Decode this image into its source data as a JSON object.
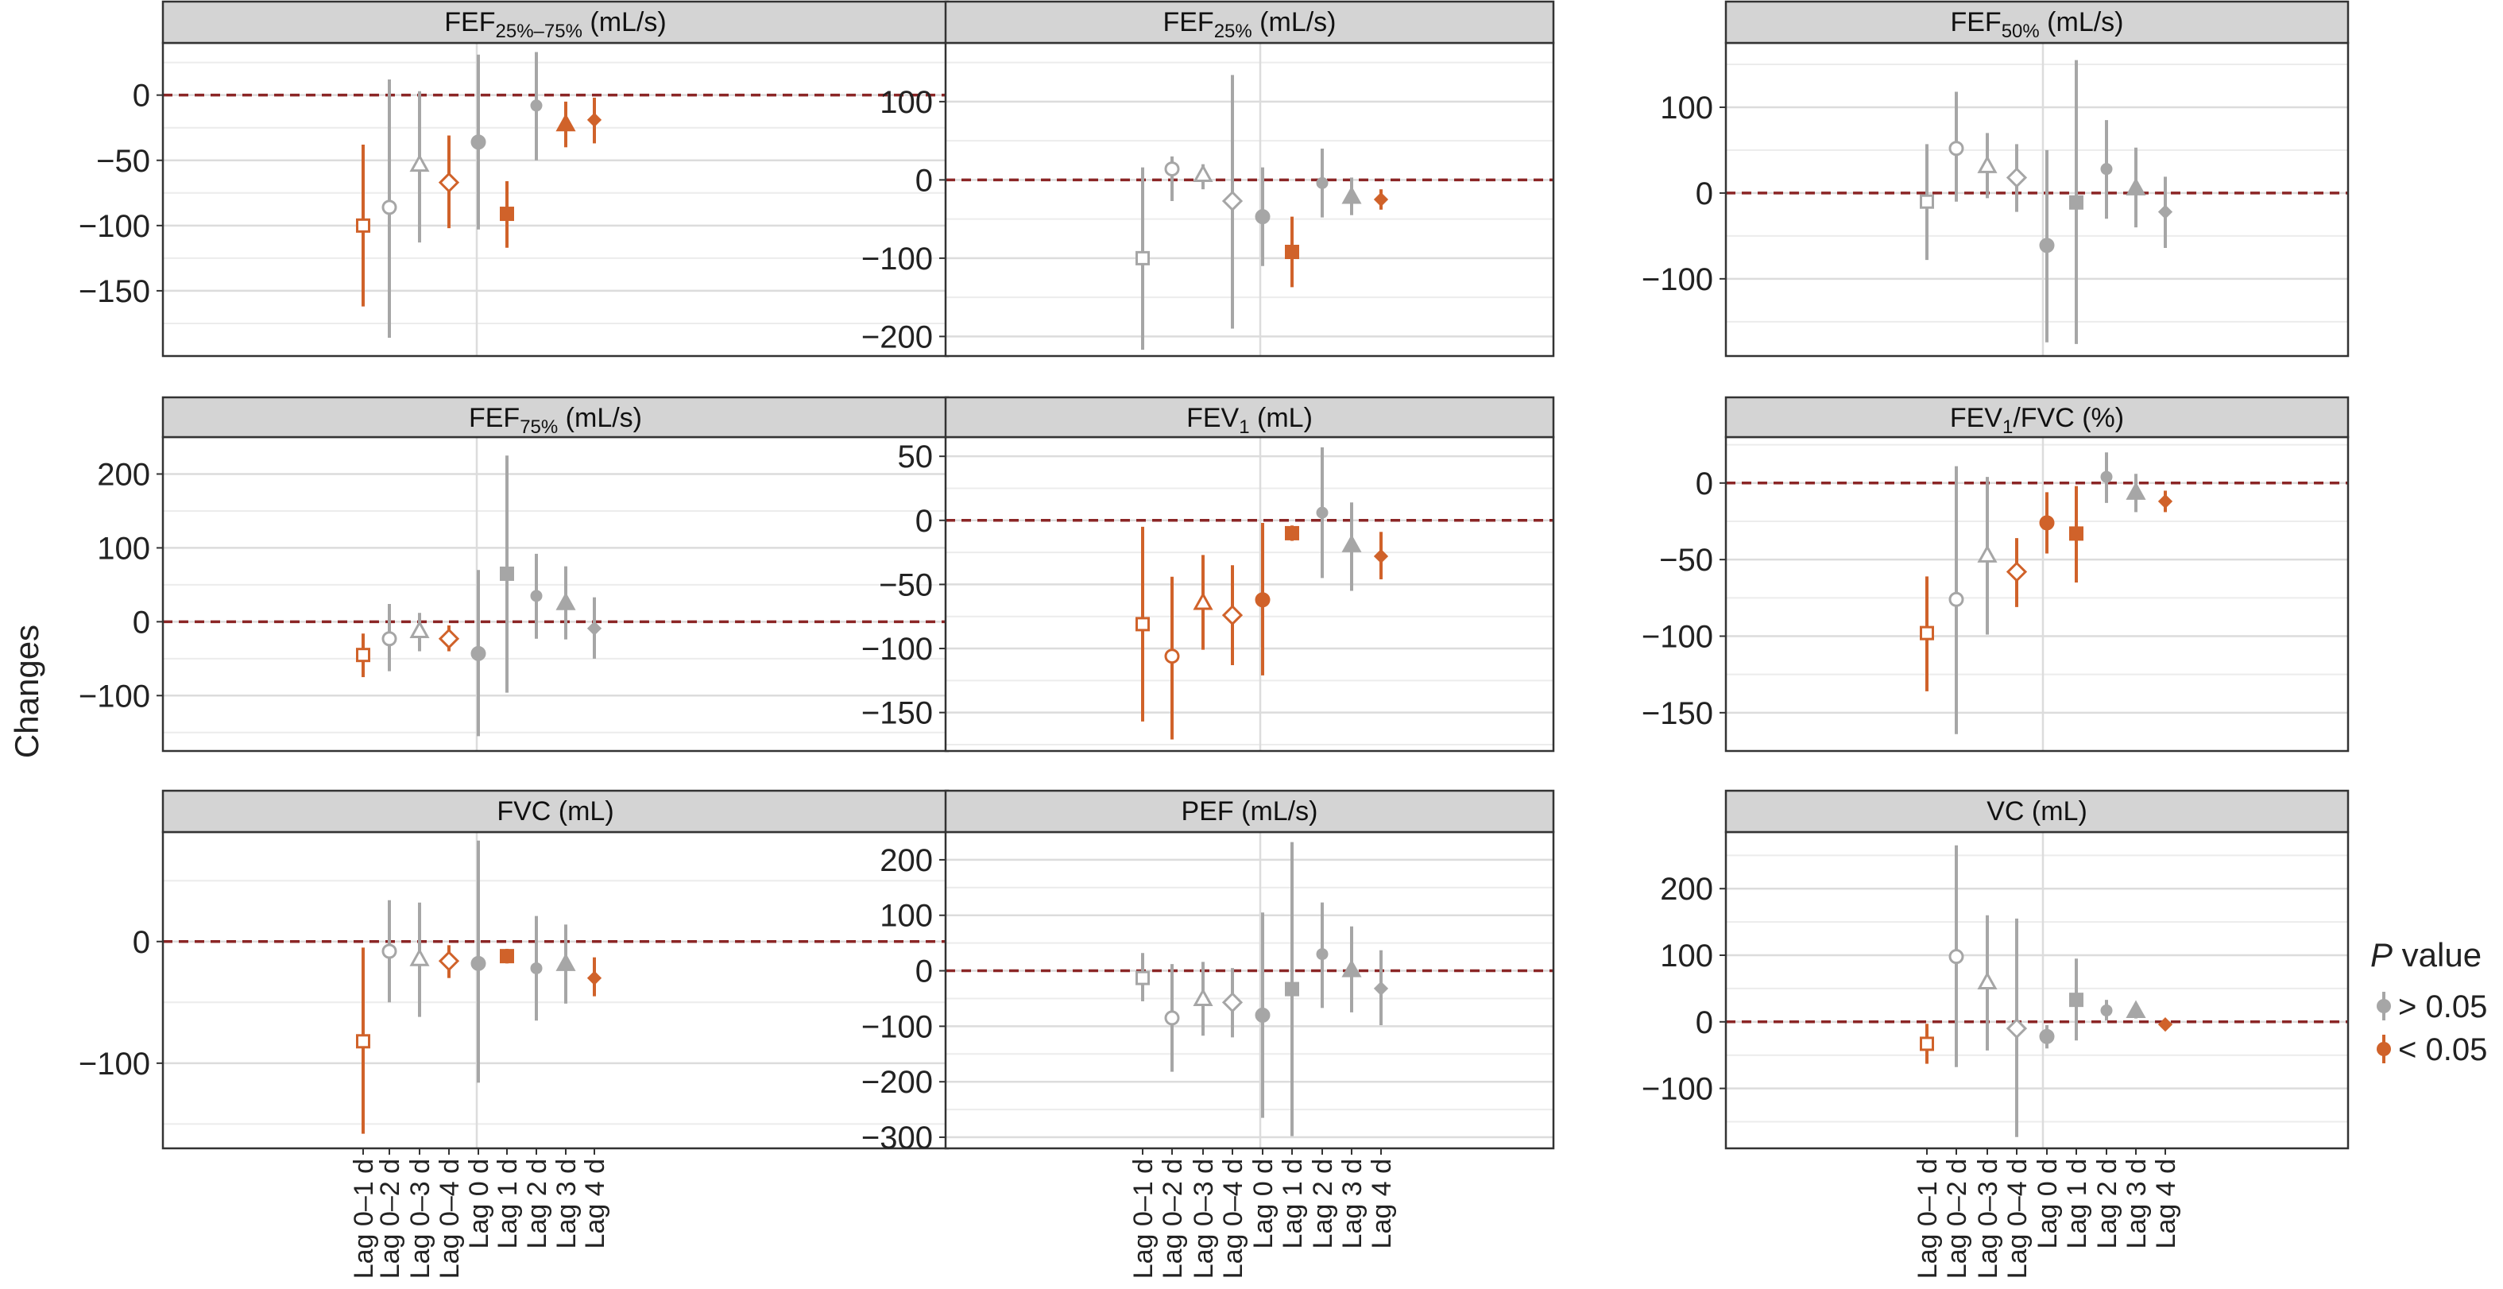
{
  "ylabel": "Changes",
  "legend": {
    "title_italic": "P",
    "title_rest": " value",
    "items": [
      {
        "label": "> 0.05",
        "color": "#a6a6a6"
      },
      {
        "label": "< 0.05",
        "color": "#d0622a"
      }
    ]
  },
  "colors": {
    "ns": "#a6a6a6",
    "sig": "#d0622a",
    "reference": "#8b2626",
    "strip": "#d4d4d4",
    "grid_major": "#dcdcdc",
    "grid_minor": "#ececec"
  },
  "categories": [
    "Lag 0–1 d",
    "Lag 0–2 d",
    "Lag 0–3 d",
    "Lag 0–4 d",
    "Lag 0 d",
    "Lag 1 d",
    "Lag 2 d",
    "Lag 3 d",
    "Lag 4 d"
  ],
  "shapes": [
    "open-square",
    "open-circle",
    "open-triangle",
    "open-diamond",
    "filled-circle",
    "filled-square",
    "filled-circle-small",
    "filled-triangle",
    "filled-diamond"
  ],
  "chart_data": [
    {
      "type": "scatter",
      "title": {
        "base": "FEF",
        "sub": "25%–75%",
        "after": " (mL/s)"
      },
      "ylim": [
        -200,
        40
      ],
      "yticks": [
        0,
        -50,
        -100,
        -150
      ],
      "reference_line": 0,
      "points": [
        {
          "est": -100,
          "lo": -162,
          "hi": -38,
          "sig": true
        },
        {
          "est": -86,
          "lo": -186,
          "hi": 12,
          "sig": false
        },
        {
          "est": -53,
          "lo": -113,
          "hi": 3,
          "sig": false
        },
        {
          "est": -67,
          "lo": -102,
          "hi": -31,
          "sig": true
        },
        {
          "est": -36,
          "lo": -103,
          "hi": 31,
          "sig": false
        },
        {
          "est": -91,
          "lo": -117,
          "hi": -66,
          "sig": true
        },
        {
          "est": -8,
          "lo": -50,
          "hi": 33,
          "sig": false
        },
        {
          "est": -22,
          "lo": -40,
          "hi": -5,
          "sig": true
        },
        {
          "est": -19,
          "lo": -37,
          "hi": -2,
          "sig": true
        }
      ]
    },
    {
      "type": "scatter",
      "title": {
        "base": "FEF",
        "sub": "25%",
        "after": " (mL/s)"
      },
      "ylim": [
        -225,
        175
      ],
      "yticks": [
        100,
        0,
        -100,
        -200
      ],
      "reference_line": 0,
      "points": [
        {
          "est": -100,
          "lo": -217,
          "hi": 16,
          "sig": false
        },
        {
          "est": 14,
          "lo": -27,
          "hi": 30,
          "sig": false
        },
        {
          "est": 7,
          "lo": -12,
          "hi": 20,
          "sig": false
        },
        {
          "est": -27,
          "lo": -190,
          "hi": 134,
          "sig": false
        },
        {
          "est": -47,
          "lo": -110,
          "hi": 16,
          "sig": false
        },
        {
          "est": -92,
          "lo": -137,
          "hi": -47,
          "sig": true
        },
        {
          "est": -4,
          "lo": -48,
          "hi": 40,
          "sig": false
        },
        {
          "est": -21,
          "lo": -45,
          "hi": 3,
          "sig": false
        },
        {
          "est": -25,
          "lo": -38,
          "hi": -12,
          "sig": true
        }
      ]
    },
    {
      "type": "scatter",
      "title": {
        "base": "FEF",
        "sub": "50%",
        "after": " (mL/s)"
      },
      "ylim": [
        -190,
        175
      ],
      "yticks": [
        100,
        0,
        -100
      ],
      "reference_line": 0,
      "points": [
        {
          "est": -10,
          "lo": -78,
          "hi": 57,
          "sig": false
        },
        {
          "est": 52,
          "lo": -10,
          "hi": 118,
          "sig": false
        },
        {
          "est": 32,
          "lo": -6,
          "hi": 70,
          "sig": false
        },
        {
          "est": 18,
          "lo": -22,
          "hi": 57,
          "sig": false
        },
        {
          "est": -61,
          "lo": -174,
          "hi": 50,
          "sig": false
        },
        {
          "est": -11,
          "lo": -176,
          "hi": 155,
          "sig": false
        },
        {
          "est": 28,
          "lo": -30,
          "hi": 85,
          "sig": false
        },
        {
          "est": 6,
          "lo": -40,
          "hi": 53,
          "sig": false
        },
        {
          "est": -22,
          "lo": -64,
          "hi": 19,
          "sig": false
        }
      ]
    },
    {
      "type": "scatter",
      "title": {
        "base": "FEF",
        "sub": "75%",
        "after": " (mL/s)"
      },
      "ylim": [
        -175,
        250
      ],
      "yticks": [
        200,
        100,
        0,
        -100
      ],
      "reference_line": 0,
      "points": [
        {
          "est": -45,
          "lo": -75,
          "hi": -16,
          "sig": true
        },
        {
          "est": -23,
          "lo": -67,
          "hi": 24,
          "sig": false
        },
        {
          "est": -12,
          "lo": -40,
          "hi": 12,
          "sig": false
        },
        {
          "est": -23,
          "lo": -40,
          "hi": -5,
          "sig": true
        },
        {
          "est": -43,
          "lo": -155,
          "hi": 70,
          "sig": false
        },
        {
          "est": 65,
          "lo": -96,
          "hi": 225,
          "sig": false
        },
        {
          "est": 35,
          "lo": -23,
          "hi": 92,
          "sig": false
        },
        {
          "est": 26,
          "lo": -24,
          "hi": 75,
          "sig": false
        },
        {
          "est": -9,
          "lo": -50,
          "hi": 33,
          "sig": false
        }
      ]
    },
    {
      "type": "scatter",
      "title": {
        "base": "FEV",
        "sub": "1",
        "after": " (mL)"
      },
      "ylim": [
        -180,
        65
      ],
      "yticks": [
        50,
        0,
        -50,
        -100,
        -150
      ],
      "reference_line": 0,
      "points": [
        {
          "est": -81,
          "lo": -157,
          "hi": -5,
          "sig": true
        },
        {
          "est": -106,
          "lo": -171,
          "hi": -44,
          "sig": true
        },
        {
          "est": -64,
          "lo": -101,
          "hi": -27,
          "sig": true
        },
        {
          "est": -74,
          "lo": -113,
          "hi": -35,
          "sig": true
        },
        {
          "est": -62,
          "lo": -121,
          "hi": -2,
          "sig": true
        },
        {
          "est": -10,
          "lo": -16,
          "hi": -4,
          "sig": true
        },
        {
          "est": 6,
          "lo": -45,
          "hi": 57,
          "sig": false
        },
        {
          "est": -19,
          "lo": -55,
          "hi": 14,
          "sig": false
        },
        {
          "est": -28,
          "lo": -46,
          "hi": -9,
          "sig": true
        }
      ]
    },
    {
      "type": "scatter",
      "title": {
        "base": "FEV",
        "sub": "1",
        "after": "/FVC (%)"
      },
      "ylim": [
        -175,
        30
      ],
      "yticks": [
        0,
        -50,
        -100,
        -150
      ],
      "reference_line": 0,
      "points": [
        {
          "est": -98,
          "lo": -136,
          "hi": -61,
          "sig": true
        },
        {
          "est": -76,
          "lo": -164,
          "hi": 11,
          "sig": false
        },
        {
          "est": -47,
          "lo": -99,
          "hi": 4,
          "sig": false
        },
        {
          "est": -58,
          "lo": -81,
          "hi": -36,
          "sig": true
        },
        {
          "est": -26,
          "lo": -46,
          "hi": -6,
          "sig": true
        },
        {
          "est": -33,
          "lo": -65,
          "hi": -2,
          "sig": true
        },
        {
          "est": 4,
          "lo": -13,
          "hi": 20,
          "sig": false
        },
        {
          "est": -6,
          "lo": -19,
          "hi": 6,
          "sig": false
        },
        {
          "est": -12,
          "lo": -19,
          "hi": -5,
          "sig": true
        }
      ]
    },
    {
      "type": "scatter",
      "title": {
        "base": "FVC (mL)",
        "sub": "",
        "after": ""
      },
      "ylim": [
        -170,
        90
      ],
      "yticks": [
        0,
        -100
      ],
      "reference_line": 0,
      "points": [
        {
          "est": -82,
          "lo": -158,
          "hi": -5,
          "sig": true
        },
        {
          "est": -8,
          "lo": -50,
          "hi": 34,
          "sig": false
        },
        {
          "est": -14,
          "lo": -62,
          "hi": 32,
          "sig": false
        },
        {
          "est": -16,
          "lo": -30,
          "hi": -3,
          "sig": true
        },
        {
          "est": -18,
          "lo": -116,
          "hi": 83,
          "sig": false
        },
        {
          "est": -12,
          "lo": -18,
          "hi": -6,
          "sig": true
        },
        {
          "est": -22,
          "lo": -65,
          "hi": 21,
          "sig": false
        },
        {
          "est": -18,
          "lo": -51,
          "hi": 14,
          "sig": false
        },
        {
          "est": -30,
          "lo": -45,
          "hi": -13,
          "sig": true
        }
      ]
    },
    {
      "type": "scatter",
      "title": {
        "base": "PEF (mL/s)",
        "sub": "",
        "after": ""
      },
      "ylim": [
        -320,
        250
      ],
      "yticks": [
        200,
        100,
        0,
        -100,
        -200,
        -300
      ],
      "reference_line": 0,
      "points": [
        {
          "est": -13,
          "lo": -55,
          "hi": 32,
          "sig": false
        },
        {
          "est": -85,
          "lo": -182,
          "hi": 12,
          "sig": false
        },
        {
          "est": -50,
          "lo": -117,
          "hi": 16,
          "sig": false
        },
        {
          "est": -57,
          "lo": -120,
          "hi": 5,
          "sig": false
        },
        {
          "est": -80,
          "lo": -265,
          "hi": 105,
          "sig": false
        },
        {
          "est": -33,
          "lo": -298,
          "hi": 232,
          "sig": false
        },
        {
          "est": 30,
          "lo": -67,
          "hi": 123,
          "sig": false
        },
        {
          "est": 2,
          "lo": -75,
          "hi": 80,
          "sig": false
        },
        {
          "est": -32,
          "lo": -98,
          "hi": 37,
          "sig": false
        }
      ]
    },
    {
      "type": "scatter",
      "title": {
        "base": "VC (mL)",
        "sub": "",
        "after": ""
      },
      "ylim": [
        -190,
        285
      ],
      "yticks": [
        200,
        100,
        0,
        -100
      ],
      "reference_line": 0,
      "points": [
        {
          "est": -33,
          "lo": -63,
          "hi": -3,
          "sig": true
        },
        {
          "est": 98,
          "lo": -68,
          "hi": 265,
          "sig": false
        },
        {
          "est": 60,
          "lo": -43,
          "hi": 160,
          "sig": false
        },
        {
          "est": -10,
          "lo": -173,
          "hi": 155,
          "sig": false
        },
        {
          "est": -22,
          "lo": -40,
          "hi": -5,
          "sig": false
        },
        {
          "est": 33,
          "lo": -28,
          "hi": 95,
          "sig": false
        },
        {
          "est": 17,
          "lo": 2,
          "hi": 33,
          "sig": false
        },
        {
          "est": 17,
          "lo": 5,
          "hi": 28,
          "sig": false
        },
        {
          "est": -4,
          "lo": -8,
          "hi": 0,
          "sig": true
        }
      ]
    }
  ]
}
